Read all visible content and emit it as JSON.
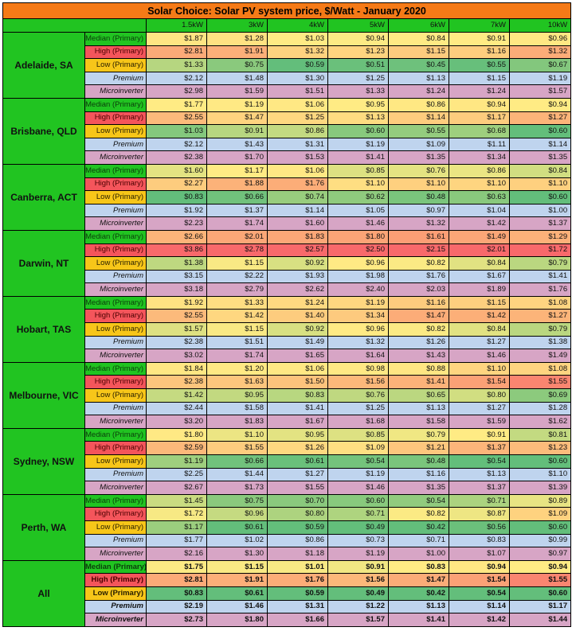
{
  "title": "Solar Choice: Solar PV system price, $/Watt - January 2020",
  "chart_data": {
    "type": "heatmap",
    "title": "Solar Choice: Solar PV system price, $/Watt - January 2020",
    "columns": [
      "1.5kW",
      "3kW",
      "4kW",
      "5kW",
      "6kW",
      "7kW",
      "10kW"
    ],
    "row_labels": [
      "Median (Primary)",
      "High (Primary)",
      "Low (Primary)",
      "Premium",
      "Microinverter"
    ],
    "color_scale": {
      "low": "#63be7b",
      "mid": "#ffeb84",
      "high": "#f8696b"
    },
    "groups": [
      {
        "name": "Adelaide, SA",
        "rows": [
          [
            "$1.87",
            "$1.28",
            "$1.03",
            "$0.94",
            "$0.84",
            "$0.91",
            "$0.96"
          ],
          [
            "$2.81",
            "$1.91",
            "$1.32",
            "$1.23",
            "$1.15",
            "$1.16",
            "$1.32"
          ],
          [
            "$1.33",
            "$0.75",
            "$0.59",
            "$0.51",
            "$0.45",
            "$0.55",
            "$0.67"
          ],
          [
            "$2.12",
            "$1.48",
            "$1.30",
            "$1.25",
            "$1.13",
            "$1.15",
            "$1.19"
          ],
          [
            "$2.98",
            "$1.59",
            "$1.51",
            "$1.33",
            "$1.24",
            "$1.24",
            "$1.57"
          ]
        ]
      },
      {
        "name": "Brisbane, QLD",
        "rows": [
          [
            "$1.77",
            "$1.19",
            "$1.06",
            "$0.95",
            "$0.86",
            "$0.94",
            "$0.94"
          ],
          [
            "$2.55",
            "$1.47",
            "$1.25",
            "$1.13",
            "$1.14",
            "$1.17",
            "$1.27"
          ],
          [
            "$1.03",
            "$0.91",
            "$0.86",
            "$0.60",
            "$0.55",
            "$0.68",
            "$0.60"
          ],
          [
            "$2.12",
            "$1.43",
            "$1.31",
            "$1.19",
            "$1.09",
            "$1.11",
            "$1.14"
          ],
          [
            "$2.38",
            "$1.70",
            "$1.53",
            "$1.41",
            "$1.35",
            "$1.34",
            "$1.35"
          ]
        ]
      },
      {
        "name": "Canberra, ACT",
        "rows": [
          [
            "$1.60",
            "$1.17",
            "$1.06",
            "$0.85",
            "$0.76",
            "$0.86",
            "$0.84"
          ],
          [
            "$2.27",
            "$1.88",
            "$1.76",
            "$1.10",
            "$1.10",
            "$1.10",
            "$1.10"
          ],
          [
            "$0.83",
            "$0.66",
            "$0.74",
            "$0.62",
            "$0.48",
            "$0.63",
            "$0.60"
          ],
          [
            "$1.92",
            "$1.37",
            "$1.14",
            "$1.05",
            "$0.97",
            "$1.04",
            "$1.00"
          ],
          [
            "$2.23",
            "$1.74",
            "$1.60",
            "$1.46",
            "$1.32",
            "$1.42",
            "$1.37"
          ]
        ]
      },
      {
        "name": "Darwin, NT",
        "rows": [
          [
            "$2.66",
            "$2.01",
            "$1.83",
            "$1.80",
            "$1.61",
            "$1.49",
            "$1.29"
          ],
          [
            "$3.86",
            "$2.78",
            "$2.57",
            "$2.50",
            "$2.15",
            "$2.01",
            "$1.72"
          ],
          [
            "$1.38",
            "$1.15",
            "$0.92",
            "$0.96",
            "$0.82",
            "$0.84",
            "$0.79"
          ],
          [
            "$3.15",
            "$2.22",
            "$1.93",
            "$1.98",
            "$1.76",
            "$1.67",
            "$1.41"
          ],
          [
            "$3.18",
            "$2.79",
            "$2.62",
            "$2.40",
            "$2.03",
            "$1.89",
            "$1.76"
          ]
        ]
      },
      {
        "name": "Hobart, TAS",
        "rows": [
          [
            "$1.92",
            "$1.33",
            "$1.24",
            "$1.19",
            "$1.16",
            "$1.15",
            "$1.08"
          ],
          [
            "$2.55",
            "$1.42",
            "$1.40",
            "$1.34",
            "$1.47",
            "$1.42",
            "$1.27"
          ],
          [
            "$1.57",
            "$1.15",
            "$0.92",
            "$0.96",
            "$0.82",
            "$0.84",
            "$0.79"
          ],
          [
            "$2.38",
            "$1.51",
            "$1.49",
            "$1.32",
            "$1.26",
            "$1.27",
            "$1.38"
          ],
          [
            "$3.02",
            "$1.74",
            "$1.65",
            "$1.64",
            "$1.43",
            "$1.46",
            "$1.49"
          ]
        ]
      },
      {
        "name": "Melbourne, VIC",
        "rows": [
          [
            "$1.84",
            "$1.20",
            "$1.06",
            "$0.98",
            "$0.88",
            "$1.10",
            "$1.08"
          ],
          [
            "$2.38",
            "$1.63",
            "$1.50",
            "$1.56",
            "$1.41",
            "$1.54",
            "$1.55"
          ],
          [
            "$1.42",
            "$0.95",
            "$0.83",
            "$0.76",
            "$0.65",
            "$0.80",
            "$0.69"
          ],
          [
            "$2.44",
            "$1.58",
            "$1.41",
            "$1.25",
            "$1.13",
            "$1.27",
            "$1.28"
          ],
          [
            "$3.20",
            "$1.83",
            "$1.67",
            "$1.68",
            "$1.58",
            "$1.59",
            "$1.62"
          ]
        ]
      },
      {
        "name": "Sydney, NSW",
        "rows": [
          [
            "$1.80",
            "$1.10",
            "$0.95",
            "$0.85",
            "$0.79",
            "$0.91",
            "$0.81"
          ],
          [
            "$2.59",
            "$1.55",
            "$1.26",
            "$1.09",
            "$1.21",
            "$1.37",
            "$1.23"
          ],
          [
            "$1.19",
            "$0.66",
            "$0.61",
            "$0.54",
            "$0.48",
            "$0.54",
            "$0.60"
          ],
          [
            "$2.25",
            "$1.44",
            "$1.27",
            "$1.19",
            "$1.16",
            "$1.13",
            "$1.10"
          ],
          [
            "$2.67",
            "$1.73",
            "$1.55",
            "$1.46",
            "$1.35",
            "$1.37",
            "$1.39"
          ]
        ]
      },
      {
        "name": "Perth, WA",
        "rows": [
          [
            "$1.45",
            "$0.75",
            "$0.70",
            "$0.60",
            "$0.54",
            "$0.71",
            "$0.89"
          ],
          [
            "$1.72",
            "$0.96",
            "$0.80",
            "$0.71",
            "$0.82",
            "$0.87",
            "$1.09"
          ],
          [
            "$1.17",
            "$0.61",
            "$0.59",
            "$0.49",
            "$0.42",
            "$0.56",
            "$0.60"
          ],
          [
            "$1.77",
            "$1.02",
            "$0.86",
            "$0.73",
            "$0.71",
            "$0.83",
            "$0.99"
          ],
          [
            "$2.16",
            "$1.30",
            "$1.18",
            "$1.19",
            "$1.00",
            "$1.07",
            "$0.97"
          ]
        ]
      },
      {
        "name": "All",
        "rows": [
          [
            "$1.75",
            "$1.15",
            "$1.01",
            "$0.91",
            "$0.83",
            "$0.94",
            "$0.94"
          ],
          [
            "$2.81",
            "$1.91",
            "$1.76",
            "$1.56",
            "$1.47",
            "$1.54",
            "$1.55"
          ],
          [
            "$0.83",
            "$0.61",
            "$0.59",
            "$0.49",
            "$0.42",
            "$0.54",
            "$0.60"
          ],
          [
            "$2.19",
            "$1.46",
            "$1.31",
            "$1.22",
            "$1.13",
            "$1.14",
            "$1.17"
          ],
          [
            "$2.73",
            "$1.80",
            "$1.66",
            "$1.57",
            "$1.41",
            "$1.42",
            "$1.44"
          ]
        ]
      }
    ]
  }
}
